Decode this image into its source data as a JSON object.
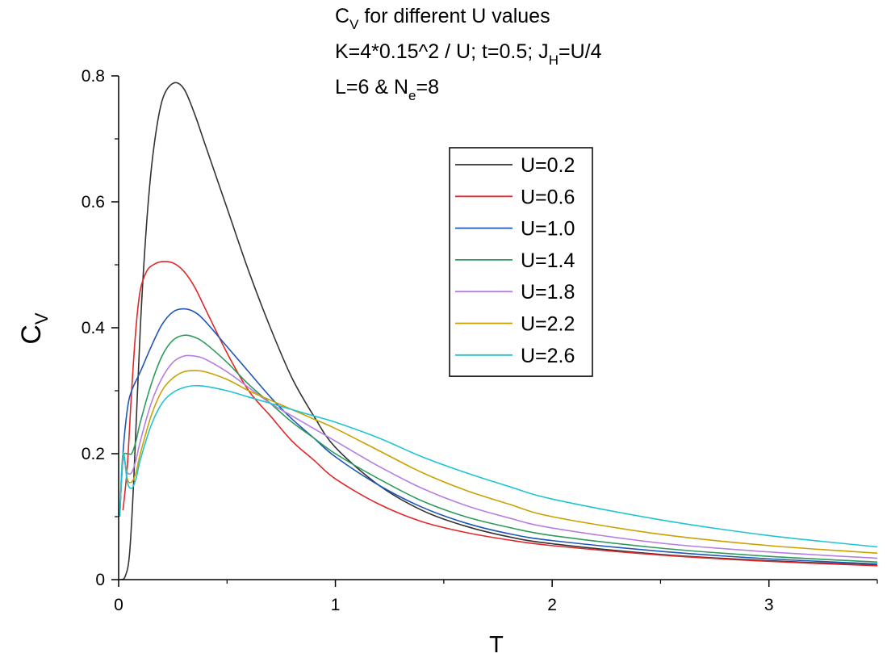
{
  "chart_data": {
    "type": "line",
    "annotations": [
      {
        "text": "C",
        "sub": "V",
        "rest": " for different U values"
      },
      {
        "text": "K=4*0.15^2 / U; t=0.5; J",
        "sub": "H",
        "rest": "=U/4"
      },
      {
        "text": "L=6 & N",
        "sub": "e",
        "rest": "=8"
      }
    ],
    "xlabel": "T",
    "ylabel": {
      "text": "C",
      "sub": "V"
    },
    "xlim": [
      0,
      3.5
    ],
    "ylim": [
      0,
      0.8
    ],
    "xticks": [
      0,
      1,
      2,
      3
    ],
    "xtick_labels": [
      "0",
      "1",
      "2",
      "3"
    ],
    "xminor": [
      0.5,
      1.5,
      2.5,
      3.5
    ],
    "yticks": [
      0,
      0.2,
      0.4,
      0.6,
      0.8
    ],
    "ytick_labels": [
      "0",
      "0.2",
      "0.4",
      "0.6",
      "0.8"
    ],
    "yminor": [
      0.1,
      0.3,
      0.5,
      0.7
    ],
    "grid": false,
    "legend_position": "upper-center",
    "series": [
      {
        "name": "U=0.2",
        "color": "#333333",
        "x": [
          0.01,
          0.03,
          0.05,
          0.07,
          0.1,
          0.13,
          0.16,
          0.2,
          0.25,
          0.3,
          0.35,
          0.4,
          0.5,
          0.6,
          0.7,
          0.8,
          0.9,
          1.0,
          1.2,
          1.4,
          1.6,
          1.8,
          2.0,
          2.5,
          3.0,
          3.5
        ],
        "y": [
          0.0,
          0.005,
          0.04,
          0.16,
          0.4,
          0.57,
          0.68,
          0.76,
          0.788,
          0.78,
          0.74,
          0.69,
          0.59,
          0.49,
          0.4,
          0.32,
          0.26,
          0.21,
          0.15,
          0.11,
          0.085,
          0.068,
          0.057,
          0.04,
          0.03,
          0.023
        ]
      },
      {
        "name": "U=0.6",
        "color": "#e0282b",
        "x": [
          0.02,
          0.04,
          0.06,
          0.08,
          0.1,
          0.13,
          0.16,
          0.2,
          0.25,
          0.3,
          0.35,
          0.4,
          0.5,
          0.6,
          0.7,
          0.8,
          0.9,
          1.0,
          1.2,
          1.4,
          1.6,
          1.8,
          2.0,
          2.5,
          3.0,
          3.5
        ],
        "y": [
          0.11,
          0.18,
          0.3,
          0.4,
          0.46,
          0.49,
          0.5,
          0.505,
          0.503,
          0.49,
          0.465,
          0.43,
          0.36,
          0.3,
          0.26,
          0.22,
          0.19,
          0.16,
          0.12,
          0.092,
          0.075,
          0.063,
          0.054,
          0.039,
          0.029,
          0.022
        ]
      },
      {
        "name": "U=1.0",
        "color": "#1f57b8",
        "x": [
          0.005,
          0.02,
          0.04,
          0.06,
          0.1,
          0.15,
          0.2,
          0.25,
          0.3,
          0.35,
          0.4,
          0.5,
          0.6,
          0.7,
          0.8,
          0.9,
          1.0,
          1.2,
          1.4,
          1.6,
          1.8,
          2.0,
          2.5,
          3.0,
          3.5
        ],
        "y": [
          0.1,
          0.2,
          0.27,
          0.3,
          0.33,
          0.37,
          0.405,
          0.425,
          0.43,
          0.425,
          0.41,
          0.37,
          0.33,
          0.29,
          0.255,
          0.225,
          0.195,
          0.15,
          0.115,
          0.09,
          0.073,
          0.062,
          0.045,
          0.033,
          0.025
        ]
      },
      {
        "name": "U=1.4",
        "color": "#2e9b5c",
        "x": [
          0.005,
          0.02,
          0.04,
          0.06,
          0.08,
          0.1,
          0.15,
          0.2,
          0.25,
          0.3,
          0.35,
          0.4,
          0.5,
          0.6,
          0.7,
          0.8,
          0.9,
          1.0,
          1.2,
          1.4,
          1.6,
          1.8,
          2.0,
          2.5,
          3.0,
          3.5
        ],
        "y": [
          0.1,
          0.19,
          0.2,
          0.2,
          0.22,
          0.25,
          0.31,
          0.355,
          0.38,
          0.388,
          0.385,
          0.375,
          0.345,
          0.31,
          0.28,
          0.25,
          0.225,
          0.2,
          0.16,
          0.125,
          0.1,
          0.083,
          0.07,
          0.05,
          0.037,
          0.028
        ]
      },
      {
        "name": "U=1.8",
        "color": "#b57fe0",
        "x": [
          0.005,
          0.02,
          0.04,
          0.06,
          0.08,
          0.1,
          0.15,
          0.2,
          0.25,
          0.3,
          0.35,
          0.4,
          0.5,
          0.6,
          0.7,
          0.8,
          0.9,
          1.0,
          1.2,
          1.4,
          1.6,
          1.8,
          2.0,
          2.5,
          3.0,
          3.5
        ],
        "y": [
          0.1,
          0.19,
          0.17,
          0.17,
          0.19,
          0.22,
          0.28,
          0.32,
          0.345,
          0.355,
          0.355,
          0.35,
          0.33,
          0.305,
          0.28,
          0.26,
          0.24,
          0.22,
          0.18,
          0.145,
          0.118,
          0.098,
          0.082,
          0.058,
          0.044,
          0.034
        ]
      },
      {
        "name": "U=2.2",
        "color": "#c9a200",
        "x": [
          0.005,
          0.02,
          0.04,
          0.06,
          0.08,
          0.1,
          0.15,
          0.2,
          0.25,
          0.3,
          0.35,
          0.4,
          0.5,
          0.6,
          0.7,
          0.8,
          0.9,
          1.0,
          1.2,
          1.4,
          1.6,
          1.8,
          2.0,
          2.5,
          3.0,
          3.5
        ],
        "y": [
          0.1,
          0.2,
          0.16,
          0.155,
          0.17,
          0.2,
          0.26,
          0.3,
          0.32,
          0.33,
          0.332,
          0.33,
          0.318,
          0.3,
          0.285,
          0.27,
          0.255,
          0.24,
          0.205,
          0.17,
          0.142,
          0.12,
          0.1,
          0.072,
          0.054,
          0.042
        ]
      },
      {
        "name": "U=2.6",
        "color": "#1fc4d3",
        "x": [
          0.005,
          0.02,
          0.04,
          0.06,
          0.08,
          0.1,
          0.15,
          0.2,
          0.25,
          0.3,
          0.35,
          0.4,
          0.5,
          0.6,
          0.7,
          0.8,
          0.9,
          1.0,
          1.2,
          1.4,
          1.6,
          1.8,
          2.0,
          2.5,
          3.0,
          3.5
        ],
        "y": [
          0.1,
          0.2,
          0.155,
          0.145,
          0.16,
          0.19,
          0.245,
          0.28,
          0.297,
          0.305,
          0.308,
          0.307,
          0.3,
          0.29,
          0.28,
          0.27,
          0.26,
          0.25,
          0.225,
          0.195,
          0.17,
          0.148,
          0.128,
          0.095,
          0.07,
          0.052
        ]
      }
    ]
  }
}
